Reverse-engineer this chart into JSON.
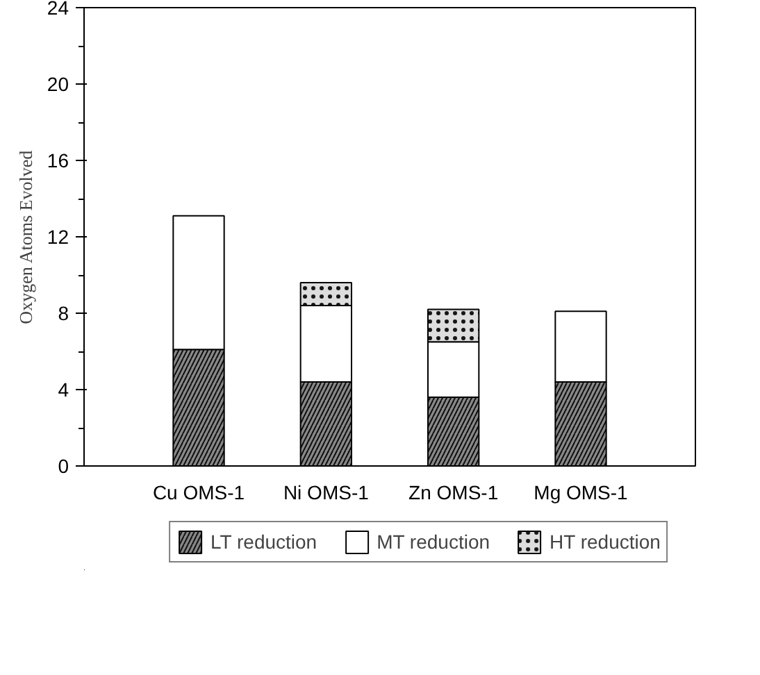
{
  "chart_data": {
    "type": "bar",
    "stacked": true,
    "ylabel": "Oxygen Atoms Evolved",
    "categories": [
      "Cu OMS-1",
      "Ni OMS-1",
      "Zn OMS-1",
      "Mg OMS-1"
    ],
    "series": [
      {
        "name": "LT reduction",
        "color": "#888888",
        "values": [
          6.1,
          4.4,
          3.6,
          4.4
        ]
      },
      {
        "name": "MT reduction",
        "color": "#ffffff",
        "values": [
          7.0,
          4.0,
          2.9,
          3.7
        ]
      },
      {
        "name": "HT reduction",
        "color": "#dddddd",
        "values": [
          null,
          1.2,
          1.7,
          null
        ]
      }
    ],
    "ylim": [
      0,
      24
    ],
    "yticks": [
      0,
      4,
      8,
      12,
      16,
      20,
      24
    ],
    "grid": false,
    "legend": "bottom"
  }
}
